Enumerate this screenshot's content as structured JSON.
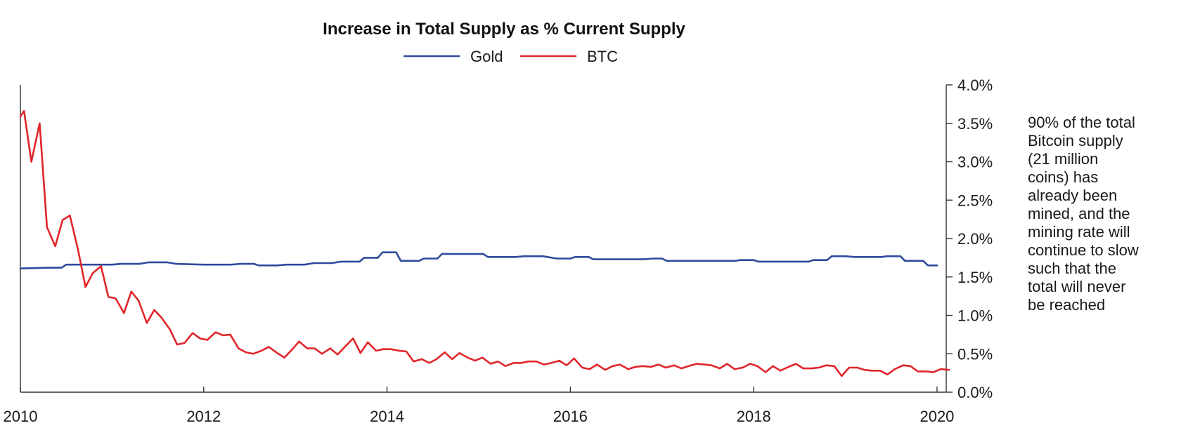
{
  "chart_data": {
    "type": "line",
    "title": "Increase in Total Supply as % Current Supply",
    "xlabel": "",
    "ylabel": "",
    "xlim": [
      2010.0,
      2020.1
    ],
    "ylim": [
      0.0,
      4.0
    ],
    "x_ticks": [
      2010,
      2012,
      2014,
      2016,
      2018,
      2020
    ],
    "x_tick_labels": [
      "2010",
      "2012",
      "2014",
      "2016",
      "2018",
      "2020"
    ],
    "y_ticks": [
      0.0,
      0.5,
      1.0,
      1.5,
      2.0,
      2.5,
      3.0,
      3.5,
      4.0
    ],
    "y_tick_labels": [
      "0.0%",
      "0.5%",
      "1.0%",
      "1.5%",
      "2.0%",
      "2.5%",
      "3.0%",
      "3.5%",
      "4.0%"
    ],
    "y_axis_position": "right",
    "grid": false,
    "legend_position": "top-center",
    "annotation": "90% of the total\nBitcoin supply\n(21 million\ncoins) has\nalready been\nmined, and the\nmining rate will\ncontinue to slow\nsuch that the\ntotal will never\nbe reached",
    "series": [
      {
        "name": "Gold",
        "color": "#2e4a9e",
        "points": [
          [
            2010.0,
            1.61
          ],
          [
            2010.3,
            1.62
          ],
          [
            2010.45,
            1.62
          ],
          [
            2010.5,
            1.66
          ],
          [
            2010.8,
            1.66
          ],
          [
            2011.0,
            1.66
          ],
          [
            2011.1,
            1.67
          ],
          [
            2011.3,
            1.67
          ],
          [
            2011.4,
            1.69
          ],
          [
            2011.6,
            1.69
          ],
          [
            2011.7,
            1.67
          ],
          [
            2012.0,
            1.66
          ],
          [
            2012.3,
            1.66
          ],
          [
            2012.4,
            1.67
          ],
          [
            2012.55,
            1.67
          ],
          [
            2012.6,
            1.65
          ],
          [
            2012.8,
            1.65
          ],
          [
            2012.9,
            1.66
          ],
          [
            2013.1,
            1.66
          ],
          [
            2013.2,
            1.68
          ],
          [
            2013.4,
            1.68
          ],
          [
            2013.5,
            1.7
          ],
          [
            2013.7,
            1.7
          ],
          [
            2013.75,
            1.75
          ],
          [
            2013.9,
            1.75
          ],
          [
            2013.95,
            1.82
          ],
          [
            2014.0,
            1.82
          ],
          [
            2014.1,
            1.82
          ],
          [
            2014.15,
            1.71
          ],
          [
            2014.35,
            1.71
          ],
          [
            2014.4,
            1.74
          ],
          [
            2014.55,
            1.74
          ],
          [
            2014.6,
            1.8
          ],
          [
            2015.0,
            1.8
          ],
          [
            2015.05,
            1.8
          ],
          [
            2015.1,
            1.76
          ],
          [
            2015.4,
            1.76
          ],
          [
            2015.5,
            1.77
          ],
          [
            2015.7,
            1.77
          ],
          [
            2015.85,
            1.74
          ],
          [
            2016.0,
            1.74
          ],
          [
            2016.05,
            1.76
          ],
          [
            2016.2,
            1.76
          ],
          [
            2016.25,
            1.73
          ],
          [
            2016.5,
            1.73
          ],
          [
            2016.8,
            1.73
          ],
          [
            2016.9,
            1.74
          ],
          [
            2017.0,
            1.74
          ],
          [
            2017.05,
            1.71
          ],
          [
            2017.6,
            1.71
          ],
          [
            2017.8,
            1.71
          ],
          [
            2017.85,
            1.72
          ],
          [
            2018.0,
            1.72
          ],
          [
            2018.05,
            1.7
          ],
          [
            2018.3,
            1.7
          ],
          [
            2018.4,
            1.7
          ],
          [
            2018.6,
            1.7
          ],
          [
            2018.65,
            1.72
          ],
          [
            2018.8,
            1.72
          ],
          [
            2018.85,
            1.77
          ],
          [
            2019.0,
            1.77
          ],
          [
            2019.1,
            1.76
          ],
          [
            2019.4,
            1.76
          ],
          [
            2019.45,
            1.77
          ],
          [
            2019.6,
            1.77
          ],
          [
            2019.65,
            1.71
          ],
          [
            2019.85,
            1.71
          ],
          [
            2019.9,
            1.65
          ],
          [
            2020.0,
            1.65
          ]
        ]
      },
      {
        "name": "BTC",
        "color": "#e0262b",
        "points": [
          [
            2010.0,
            3.59
          ],
          [
            2010.04,
            3.66
          ],
          [
            2010.12,
            3.0
          ],
          [
            2010.21,
            3.5
          ],
          [
            2010.29,
            2.15
          ],
          [
            2010.38,
            1.9
          ],
          [
            2010.46,
            2.24
          ],
          [
            2010.54,
            2.3
          ],
          [
            2010.63,
            1.85
          ],
          [
            2010.71,
            1.37
          ],
          [
            2010.79,
            1.55
          ],
          [
            2010.88,
            1.64
          ],
          [
            2010.96,
            1.24
          ],
          [
            2011.04,
            1.22
          ],
          [
            2011.13,
            1.03
          ],
          [
            2011.21,
            1.31
          ],
          [
            2011.29,
            1.19
          ],
          [
            2011.38,
            0.9
          ],
          [
            2011.46,
            1.07
          ],
          [
            2011.54,
            0.97
          ],
          [
            2011.63,
            0.82
          ],
          [
            2011.71,
            0.62
          ],
          [
            2011.79,
            0.64
          ],
          [
            2011.88,
            0.77
          ],
          [
            2011.96,
            0.7
          ],
          [
            2012.04,
            0.68
          ],
          [
            2012.13,
            0.78
          ],
          [
            2012.21,
            0.74
          ],
          [
            2012.29,
            0.75
          ],
          [
            2012.38,
            0.57
          ],
          [
            2012.46,
            0.52
          ],
          [
            2012.54,
            0.5
          ],
          [
            2012.63,
            0.54
          ],
          [
            2012.71,
            0.59
          ],
          [
            2012.79,
            0.52
          ],
          [
            2012.88,
            0.45
          ],
          [
            2012.96,
            0.55
          ],
          [
            2013.04,
            0.66
          ],
          [
            2013.13,
            0.57
          ],
          [
            2013.21,
            0.57
          ],
          [
            2013.29,
            0.5
          ],
          [
            2013.38,
            0.57
          ],
          [
            2013.46,
            0.49
          ],
          [
            2013.54,
            0.59
          ],
          [
            2013.63,
            0.7
          ],
          [
            2013.71,
            0.51
          ],
          [
            2013.79,
            0.65
          ],
          [
            2013.88,
            0.54
          ],
          [
            2013.96,
            0.56
          ],
          [
            2014.04,
            0.56
          ],
          [
            2014.13,
            0.54
          ],
          [
            2014.21,
            0.53
          ],
          [
            2014.29,
            0.4
          ],
          [
            2014.38,
            0.43
          ],
          [
            2014.46,
            0.38
          ],
          [
            2014.54,
            0.43
          ],
          [
            2014.63,
            0.52
          ],
          [
            2014.71,
            0.43
          ],
          [
            2014.79,
            0.51
          ],
          [
            2014.88,
            0.45
          ],
          [
            2014.96,
            0.41
          ],
          [
            2015.04,
            0.45
          ],
          [
            2015.13,
            0.37
          ],
          [
            2015.21,
            0.4
          ],
          [
            2015.29,
            0.34
          ],
          [
            2015.38,
            0.38
          ],
          [
            2015.46,
            0.38
          ],
          [
            2015.54,
            0.4
          ],
          [
            2015.63,
            0.4
          ],
          [
            2015.71,
            0.36
          ],
          [
            2015.79,
            0.38
          ],
          [
            2015.88,
            0.41
          ],
          [
            2015.96,
            0.35
          ],
          [
            2016.04,
            0.44
          ],
          [
            2016.13,
            0.32
          ],
          [
            2016.21,
            0.3
          ],
          [
            2016.29,
            0.36
          ],
          [
            2016.38,
            0.29
          ],
          [
            2016.46,
            0.34
          ],
          [
            2016.54,
            0.36
          ],
          [
            2016.63,
            0.3
          ],
          [
            2016.71,
            0.33
          ],
          [
            2016.79,
            0.34
          ],
          [
            2016.88,
            0.33
          ],
          [
            2016.96,
            0.36
          ],
          [
            2017.04,
            0.32
          ],
          [
            2017.13,
            0.35
          ],
          [
            2017.21,
            0.31
          ],
          [
            2017.29,
            0.34
          ],
          [
            2017.38,
            0.37
          ],
          [
            2017.46,
            0.36
          ],
          [
            2017.54,
            0.35
          ],
          [
            2017.63,
            0.31
          ],
          [
            2017.71,
            0.37
          ],
          [
            2017.79,
            0.3
          ],
          [
            2017.88,
            0.32
          ],
          [
            2017.96,
            0.37
          ],
          [
            2018.04,
            0.34
          ],
          [
            2018.13,
            0.26
          ],
          [
            2018.21,
            0.34
          ],
          [
            2018.29,
            0.28
          ],
          [
            2018.38,
            0.33
          ],
          [
            2018.46,
            0.37
          ],
          [
            2018.54,
            0.31
          ],
          [
            2018.63,
            0.31
          ],
          [
            2018.71,
            0.32
          ],
          [
            2018.79,
            0.35
          ],
          [
            2018.88,
            0.34
          ],
          [
            2018.96,
            0.21
          ],
          [
            2019.04,
            0.32
          ],
          [
            2019.13,
            0.32
          ],
          [
            2019.21,
            0.29
          ],
          [
            2019.29,
            0.28
          ],
          [
            2019.38,
            0.28
          ],
          [
            2019.46,
            0.23
          ],
          [
            2019.54,
            0.3
          ],
          [
            2019.63,
            0.35
          ],
          [
            2019.71,
            0.34
          ],
          [
            2019.79,
            0.27
          ],
          [
            2019.88,
            0.27
          ],
          [
            2019.96,
            0.26
          ],
          [
            2020.04,
            0.3
          ],
          [
            2020.13,
            0.29
          ]
        ]
      }
    ]
  }
}
